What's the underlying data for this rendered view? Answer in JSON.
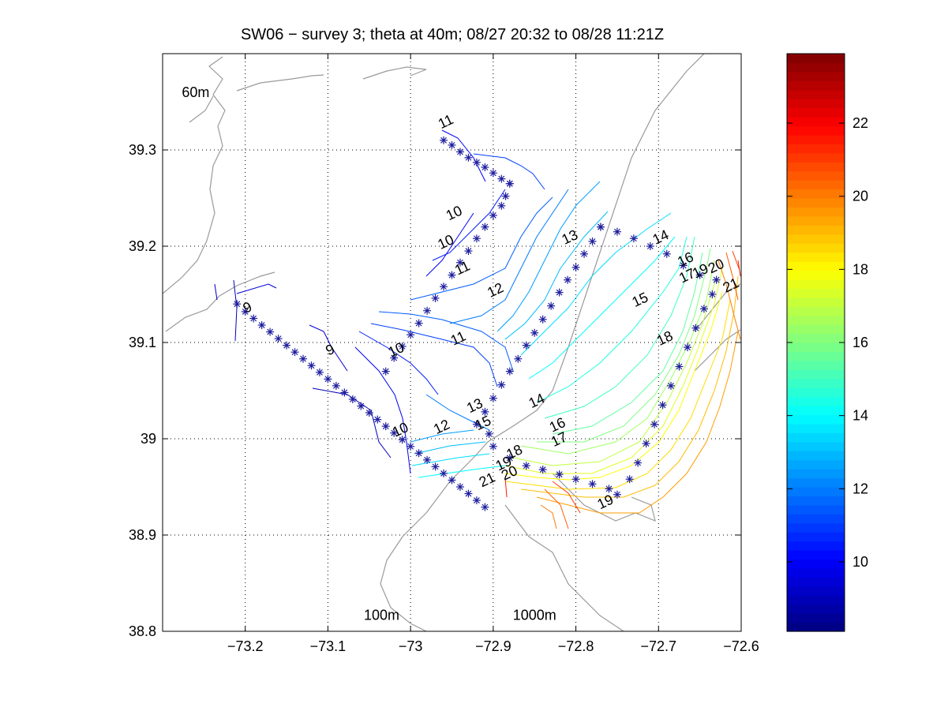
{
  "chart_data": {
    "type": "contour",
    "title": "SW06 − survey 3; theta at 40m; 08/27 20:32 to 08/28 11:21Z",
    "xlim": [
      -73.3,
      -72.6
    ],
    "ylim": [
      38.8,
      39.4
    ],
    "x_ticks": [
      -73.2,
      -73.1,
      -73.0,
      -72.9,
      -72.8,
      -72.7,
      -72.6
    ],
    "x_tick_labels": [
      "−73.2",
      "−73.1",
      "−73",
      "−72.9",
      "−72.8",
      "−72.7",
      "−72.6"
    ],
    "y_ticks": [
      38.8,
      38.9,
      39.0,
      39.1,
      39.2,
      39.3
    ],
    "y_tick_labels": [
      "38.8",
      "38.9",
      "39",
      "39.1",
      "39.2",
      "39.3"
    ],
    "grid": true,
    "annotations": [
      {
        "text": "60m",
        "x": -73.26,
        "y": 39.355
      },
      {
        "text": "100m",
        "x": -73.035,
        "y": 38.812
      },
      {
        "text": "1000m",
        "x": -72.85,
        "y": 38.812
      }
    ],
    "colorbar": {
      "range": [
        8.1,
        23.9
      ],
      "ticks": [
        10,
        12,
        14,
        16,
        18,
        20,
        22
      ],
      "colormap": "jet",
      "placement": "right"
    },
    "stations": [
      {
        "section": "A",
        "points": [
          [
            -73.21,
            39.14
          ],
          [
            -73.2,
            39.132
          ],
          [
            -73.19,
            39.125
          ],
          [
            -73.18,
            39.118
          ],
          [
            -73.17,
            39.111
          ],
          [
            -73.16,
            39.104
          ],
          [
            -73.15,
            39.097
          ],
          [
            -73.14,
            39.09
          ],
          [
            -73.13,
            39.083
          ],
          [
            -73.12,
            39.076
          ],
          [
            -73.11,
            39.069
          ],
          [
            -73.1,
            39.062
          ],
          [
            -73.09,
            39.055
          ],
          [
            -73.08,
            39.048
          ],
          [
            -73.07,
            39.041
          ],
          [
            -73.06,
            39.034
          ],
          [
            -73.05,
            39.027
          ],
          [
            -73.04,
            39.02
          ],
          [
            -73.03,
            39.013
          ],
          [
            -73.02,
            39.006
          ],
          [
            -73.01,
            38.999
          ],
          [
            -73.0,
            38.992
          ],
          [
            -72.99,
            38.985
          ],
          [
            -72.98,
            38.978
          ],
          [
            -72.97,
            38.971
          ],
          [
            -72.96,
            38.964
          ],
          [
            -72.95,
            38.957
          ],
          [
            -72.94,
            38.95
          ],
          [
            -72.93,
            38.943
          ],
          [
            -72.92,
            38.936
          ],
          [
            -72.91,
            38.929
          ],
          [
            -72.905,
            39.005
          ]
        ]
      },
      {
        "section": "B",
        "points": [
          [
            -72.96,
            39.31
          ],
          [
            -72.95,
            39.305
          ],
          [
            -72.94,
            39.298
          ],
          [
            -72.93,
            39.292
          ],
          [
            -72.92,
            39.287
          ],
          [
            -72.91,
            39.282
          ],
          [
            -72.9,
            39.276
          ],
          [
            -72.89,
            39.27
          ],
          [
            -72.88,
            39.265
          ]
        ]
      },
      {
        "section": "C",
        "points": [
          [
            -72.88,
            39.265
          ],
          [
            -72.885,
            39.252
          ],
          [
            -72.89,
            39.242
          ],
          [
            -72.9,
            39.232
          ],
          [
            -72.91,
            39.22
          ],
          [
            -72.92,
            39.208
          ],
          [
            -72.93,
            39.195
          ],
          [
            -72.94,
            39.183
          ],
          [
            -72.95,
            39.17
          ],
          [
            -72.96,
            39.158
          ],
          [
            -72.97,
            39.146
          ],
          [
            -72.98,
            39.133
          ],
          [
            -72.99,
            39.12
          ],
          [
            -73.0,
            39.108
          ],
          [
            -73.01,
            39.096
          ],
          [
            -73.02,
            39.084
          ],
          [
            -73.03,
            39.07
          ]
        ]
      },
      {
        "section": "D",
        "points": [
          [
            -72.77,
            39.22
          ],
          [
            -72.78,
            39.205
          ],
          [
            -72.79,
            39.192
          ],
          [
            -72.8,
            39.178
          ],
          [
            -72.81,
            39.165
          ],
          [
            -72.82,
            39.152
          ],
          [
            -72.83,
            39.138
          ],
          [
            -72.84,
            39.124
          ],
          [
            -72.85,
            39.11
          ],
          [
            -72.86,
            39.097
          ],
          [
            -72.87,
            39.083
          ],
          [
            -72.88,
            39.07
          ],
          [
            -72.89,
            39.056
          ],
          [
            -72.9,
            39.042
          ],
          [
            -72.91,
            39.028
          ],
          [
            -72.92,
            39.015
          ]
        ]
      },
      {
        "section": "E",
        "points": [
          [
            -72.77,
            39.22
          ],
          [
            -72.75,
            39.215
          ],
          [
            -72.73,
            39.208
          ],
          [
            -72.71,
            39.2
          ],
          [
            -72.69,
            39.192
          ],
          [
            -72.67,
            39.18
          ],
          [
            -72.65,
            39.17
          ]
        ]
      },
      {
        "section": "F",
        "points": [
          [
            -72.63,
            39.165
          ],
          [
            -72.635,
            39.15
          ],
          [
            -72.645,
            39.135
          ],
          [
            -72.655,
            39.115
          ],
          [
            -72.665,
            39.095
          ],
          [
            -72.675,
            39.075
          ],
          [
            -72.685,
            39.055
          ],
          [
            -72.695,
            39.035
          ],
          [
            -72.705,
            39.015
          ],
          [
            -72.715,
            38.995
          ],
          [
            -72.725,
            38.975
          ],
          [
            -72.735,
            38.958
          ],
          [
            -72.75,
            38.942
          ]
        ]
      },
      {
        "section": "G",
        "points": [
          [
            -72.9,
            38.992
          ],
          [
            -72.88,
            38.98
          ],
          [
            -72.86,
            38.972
          ],
          [
            -72.84,
            38.968
          ],
          [
            -72.82,
            38.963
          ],
          [
            -72.8,
            38.958
          ],
          [
            -72.78,
            38.953
          ],
          [
            -72.76,
            38.948
          ]
        ]
      }
    ],
    "contour_labels": [
      {
        "level": 9,
        "x": -73.195,
        "y": 39.132
      },
      {
        "level": 9,
        "x": -73.095,
        "y": 39.088
      },
      {
        "level": 10,
        "x": -72.945,
        "y": 39.23
      },
      {
        "level": 10,
        "x": -72.955,
        "y": 39.2
      },
      {
        "level": 10,
        "x": -73.015,
        "y": 39.088
      },
      {
        "level": 10,
        "x": -73.01,
        "y": 39.005
      },
      {
        "level": 11,
        "x": -72.955,
        "y": 39.325
      },
      {
        "level": 11,
        "x": -72.935,
        "y": 39.173
      },
      {
        "level": 11,
        "x": -72.94,
        "y": 39.1
      },
      {
        "level": 12,
        "x": -72.895,
        "y": 39.15
      },
      {
        "level": 12,
        "x": -72.96,
        "y": 39.008
      },
      {
        "level": 13,
        "x": -72.805,
        "y": 39.205
      },
      {
        "level": 13,
        "x": -72.92,
        "y": 39.03
      },
      {
        "level": 14,
        "x": -72.695,
        "y": 39.205
      },
      {
        "level": 14,
        "x": -72.845,
        "y": 39.035
      },
      {
        "level": 15,
        "x": -72.72,
        "y": 39.14
      },
      {
        "level": 15,
        "x": -72.91,
        "y": 39.012
      },
      {
        "level": 16,
        "x": -72.665,
        "y": 39.182
      },
      {
        "level": 16,
        "x": -72.82,
        "y": 39.01
      },
      {
        "level": 17,
        "x": -72.663,
        "y": 39.165
      },
      {
        "level": 17,
        "x": -72.818,
        "y": 38.995
      },
      {
        "level": 18,
        "x": -72.69,
        "y": 39.1
      },
      {
        "level": 18,
        "x": -72.872,
        "y": 38.982
      },
      {
        "level": 19,
        "x": -72.647,
        "y": 39.17
      },
      {
        "level": 19,
        "x": -72.885,
        "y": 38.97
      },
      {
        "level": 19,
        "x": -72.762,
        "y": 38.93
      },
      {
        "level": 20,
        "x": -72.628,
        "y": 39.175
      },
      {
        "level": 20,
        "x": -72.878,
        "y": 38.96
      },
      {
        "level": 21,
        "x": -72.61,
        "y": 39.155
      },
      {
        "level": 21,
        "x": -72.905,
        "y": 38.953
      }
    ]
  }
}
